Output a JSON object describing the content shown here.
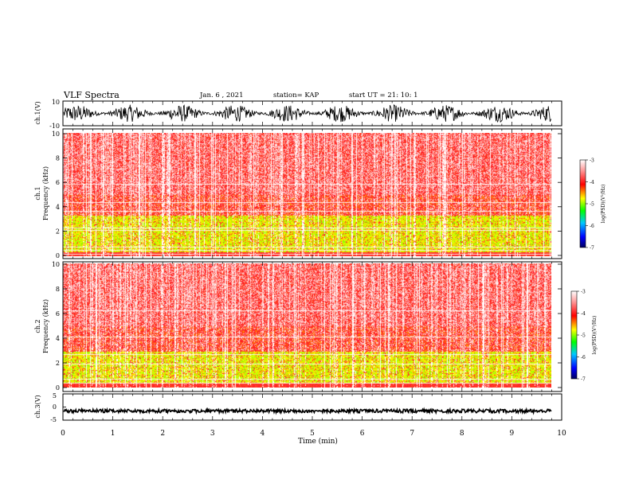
{
  "header": {
    "title": "VLF Spectra",
    "date": "Jan. 6 , 2021",
    "station": "station= KAP",
    "start": "start  UT =  21: 10: 1"
  },
  "colors": {
    "waveform": "#000000",
    "colormap": [
      "#000080",
      "#0000ff",
      "#00a0ff",
      "#00ff00",
      "#ffff00",
      "#ff0000",
      "#ffb0b0",
      "#ffffff"
    ]
  },
  "chart_data": [
    {
      "type": "line",
      "name": "ch1-waveform",
      "ylabel": "ch.1(V)",
      "ylim": [
        -10,
        10
      ],
      "yticks": [
        "10",
        "-10"
      ],
      "xlim": [
        0,
        10
      ],
      "grid": false
    },
    {
      "type": "heatmap",
      "name": "ch1-spectrogram",
      "ylabel": "ch.1\nFrequency  (kHz)",
      "ylim": [
        0,
        10
      ],
      "yticks": [
        "0",
        "2",
        "4",
        "6",
        "8",
        "10"
      ],
      "xlim": [
        0,
        10
      ],
      "colorbar": {
        "label": "log(PSD)(V²/Hz)",
        "range": [
          -7,
          -3
        ],
        "ticks": [
          "-3",
          "-4",
          "-5",
          "-6",
          "-7"
        ]
      }
    },
    {
      "type": "heatmap",
      "name": "ch2-spectrogram",
      "ylabel": "ch.2\nFrequency  (kHz)",
      "ylim": [
        0,
        10
      ],
      "yticks": [
        "0",
        "2",
        "4",
        "6",
        "8",
        "10"
      ],
      "xlim": [
        0,
        10
      ],
      "colorbar": {
        "label": "log(PSD)(V²/Hz)",
        "range": [
          -7,
          -3
        ],
        "ticks": [
          "-3",
          "-4",
          "-5",
          "-6",
          "-7"
        ]
      }
    },
    {
      "type": "line",
      "name": "ch3-waveform",
      "ylabel": "ch.3(V)",
      "ylim": [
        -5,
        5
      ],
      "yticks": [
        "5",
        "0",
        "-5"
      ],
      "xlim": [
        0,
        10
      ],
      "xlabel": "Time  (min)",
      "xticks": [
        "0",
        "1",
        "2",
        "3",
        "4",
        "5",
        "6",
        "7",
        "8",
        "9",
        "10"
      ]
    }
  ]
}
